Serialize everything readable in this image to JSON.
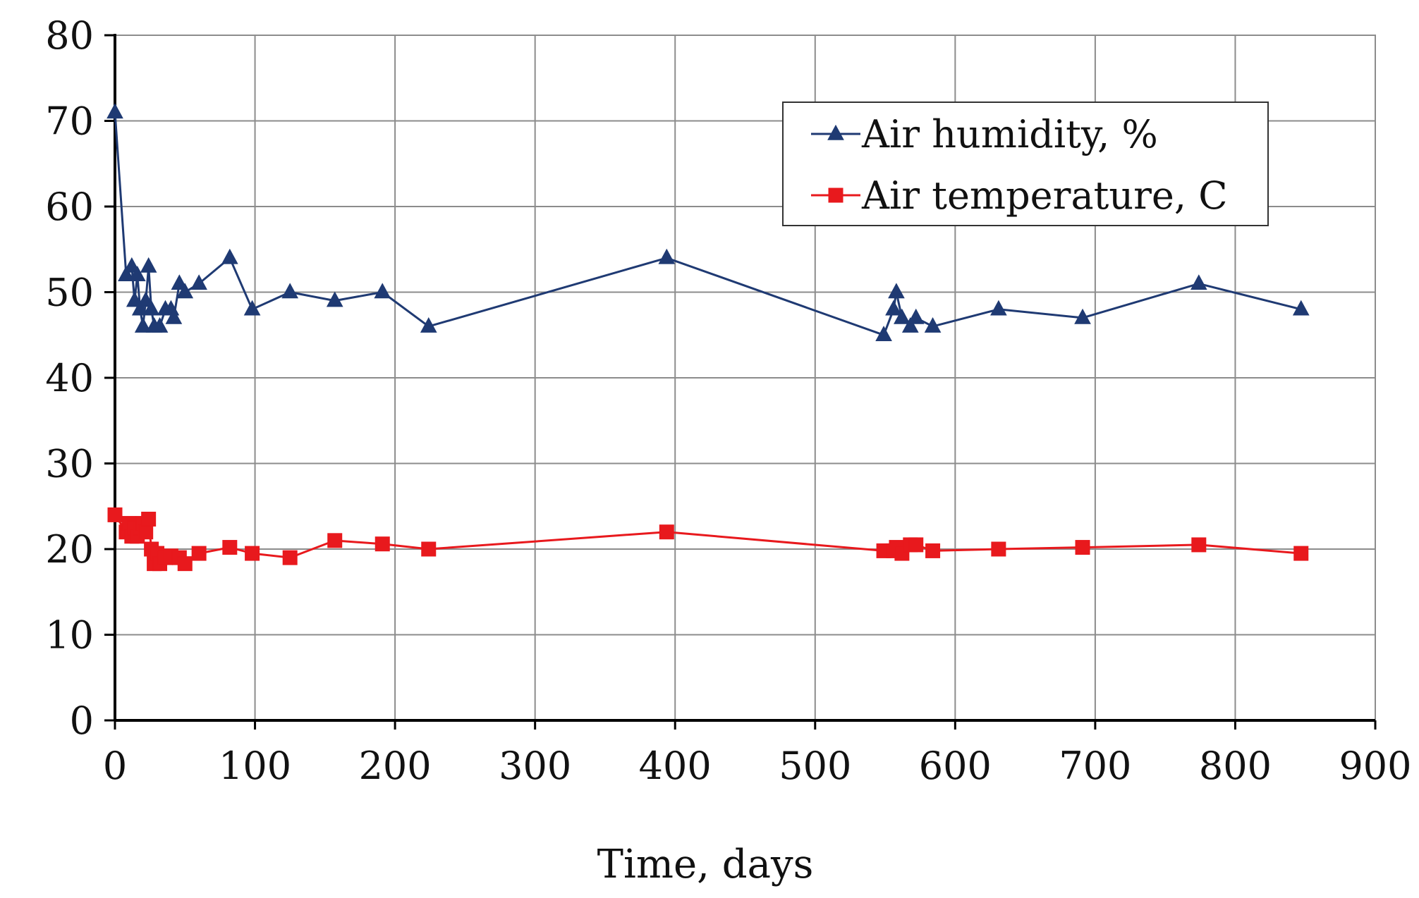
{
  "chart_data": {
    "type": "line",
    "title": "",
    "xlabel": "Time, days",
    "ylabel": "",
    "xlim": [
      0,
      900
    ],
    "ylim": [
      0,
      80
    ],
    "x_ticks": [
      0,
      100,
      200,
      300,
      400,
      500,
      600,
      700,
      800,
      900
    ],
    "y_ticks": [
      0,
      10,
      20,
      30,
      40,
      50,
      60,
      70,
      80
    ],
    "grid": true,
    "legend_position": "top-right",
    "series": [
      {
        "name": "Air humidity, %",
        "color": "#1f3a73",
        "marker": "triangle",
        "points": [
          [
            0,
            71
          ],
          [
            8,
            52
          ],
          [
            12,
            53
          ],
          [
            14,
            49
          ],
          [
            16,
            52
          ],
          [
            18,
            48
          ],
          [
            20,
            46
          ],
          [
            22,
            49
          ],
          [
            24,
            53
          ],
          [
            26,
            48
          ],
          [
            28,
            46
          ],
          [
            32,
            46
          ],
          [
            36,
            48
          ],
          [
            40,
            48
          ],
          [
            42,
            47
          ],
          [
            46,
            51
          ],
          [
            50,
            50
          ],
          [
            60,
            51
          ],
          [
            82,
            54
          ],
          [
            98,
            48
          ],
          [
            125,
            50
          ],
          [
            157,
            49
          ],
          [
            191,
            50
          ],
          [
            224,
            46
          ],
          [
            394,
            54
          ],
          [
            549,
            45
          ],
          [
            556,
            48
          ],
          [
            558,
            50
          ],
          [
            562,
            47
          ],
          [
            568,
            46
          ],
          [
            572,
            47
          ],
          [
            584,
            46
          ],
          [
            631,
            48
          ],
          [
            691,
            47
          ],
          [
            774,
            51
          ],
          [
            847,
            48
          ]
        ]
      },
      {
        "name": "Air temperature, C",
        "color": "#e8191d",
        "marker": "square",
        "points": [
          [
            0,
            24
          ],
          [
            8,
            22
          ],
          [
            10,
            23
          ],
          [
            12,
            21.5
          ],
          [
            14,
            22.5
          ],
          [
            16,
            21.5
          ],
          [
            18,
            22.5
          ],
          [
            20,
            23
          ],
          [
            22,
            22
          ],
          [
            24,
            23.5
          ],
          [
            26,
            20
          ],
          [
            28,
            18.3
          ],
          [
            30,
            19.5
          ],
          [
            32,
            18.3
          ],
          [
            36,
            19
          ],
          [
            40,
            19.2
          ],
          [
            46,
            19
          ],
          [
            50,
            18.3
          ],
          [
            60,
            19.5
          ],
          [
            82,
            20.2
          ],
          [
            98,
            19.5
          ],
          [
            125,
            19
          ],
          [
            157,
            21
          ],
          [
            191,
            20.6
          ],
          [
            224,
            20
          ],
          [
            394,
            22
          ],
          [
            549,
            19.8
          ],
          [
            556,
            19.8
          ],
          [
            558,
            20.2
          ],
          [
            562,
            19.5
          ],
          [
            568,
            20.5
          ],
          [
            572,
            20.5
          ],
          [
            584,
            19.8
          ],
          [
            631,
            20
          ],
          [
            691,
            20.2
          ],
          [
            774,
            20.5
          ],
          [
            847,
            19.5
          ]
        ]
      }
    ]
  }
}
